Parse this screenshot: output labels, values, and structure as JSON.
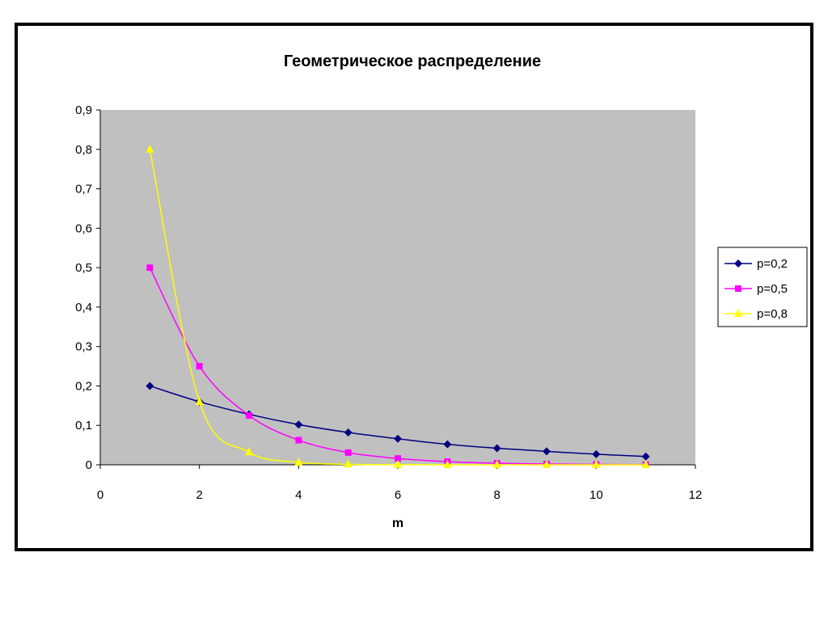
{
  "chart_data": {
    "type": "line",
    "title": "Геометрическое распределение",
    "xlabel": "m",
    "ylabel": "",
    "xlim": [
      0,
      12
    ],
    "ylim": [
      0,
      0.9
    ],
    "x_ticks": [
      0,
      2,
      4,
      6,
      8,
      10,
      12
    ],
    "x_tick_labels": [
      "0",
      "2",
      "4",
      "6",
      "8",
      "10",
      "12"
    ],
    "y_ticks": [
      0,
      0.1,
      0.2,
      0.3,
      0.4,
      0.5,
      0.6,
      0.7,
      0.8,
      0.9
    ],
    "y_tick_labels": [
      "0",
      "0,1",
      "0,2",
      "0,3",
      "0,4",
      "0,5",
      "0,6",
      "0,7",
      "0,8",
      "0,9"
    ],
    "grid": false,
    "plot_background": "#c0c0c0",
    "smoothed": true,
    "legend_position": "right",
    "x": [
      1,
      2,
      3,
      4,
      5,
      6,
      7,
      8,
      9,
      10,
      11
    ],
    "series": [
      {
        "name": "p=0,2",
        "color": "#000080",
        "marker": "diamond",
        "values": [
          0.2,
          0.16,
          0.128,
          0.102,
          0.082,
          0.066,
          0.052,
          0.042,
          0.034,
          0.027,
          0.021
        ]
      },
      {
        "name": "p=0,5",
        "color": "#ff00ff",
        "marker": "square",
        "values": [
          0.5,
          0.25,
          0.125,
          0.0625,
          0.031,
          0.016,
          0.008,
          0.004,
          0.002,
          0.001,
          0.0005
        ]
      },
      {
        "name": "p=0,8",
        "color": "#ffff00",
        "marker": "triangle",
        "values": [
          0.8,
          0.16,
          0.032,
          0.0064,
          0.0013,
          0.0003,
          0.0001,
          0,
          0,
          0,
          0
        ]
      }
    ]
  }
}
